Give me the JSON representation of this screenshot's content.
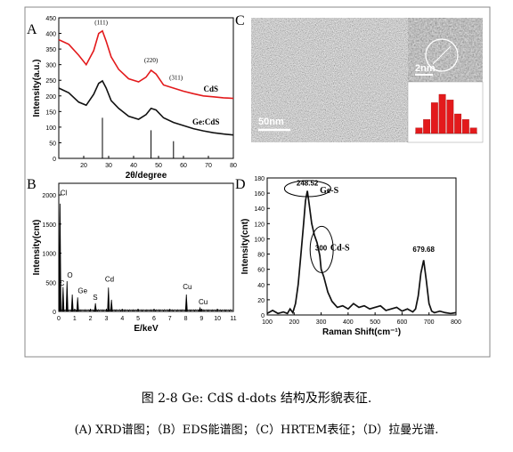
{
  "caption": {
    "title": "图  2-8 Ge: CdS d-dots  结构及形貌表征.",
    "subtitle": "(A) XRD谱图；（B）EDS能谱图；（C）HRTEM表征；（D）拉曼光谱."
  },
  "chart_data": [
    {
      "panel": "A",
      "type": "line",
      "xlabel": "2θ/degree",
      "ylabel": "Intensity(a.u.)",
      "xlim": [
        10,
        80
      ],
      "ylim": [
        0,
        450
      ],
      "x_ticks": [
        20,
        30,
        40,
        50,
        60,
        70,
        80
      ],
      "y_ticks": [
        0,
        50,
        100,
        150,
        200,
        250,
        300,
        350,
        400,
        450
      ],
      "series": [
        {
          "name": "CdS",
          "color": "#e31a1c",
          "x": [
            10,
            14,
            18,
            21,
            24,
            26,
            27.5,
            29,
            31,
            34,
            38,
            42,
            45,
            47,
            49,
            52,
            56,
            60,
            64,
            68,
            72,
            76,
            80
          ],
          "y": [
            380,
            365,
            330,
            300,
            345,
            400,
            408,
            375,
            325,
            285,
            255,
            245,
            260,
            282,
            270,
            235,
            225,
            215,
            207,
            200,
            197,
            194,
            192
          ]
        },
        {
          "name": "Ge:CdS",
          "color": "#111111",
          "x": [
            10,
            14,
            18,
            21,
            24,
            26,
            27.5,
            29,
            31,
            34,
            38,
            42,
            45,
            47,
            49,
            52,
            56,
            60,
            64,
            68,
            72,
            76,
            80
          ],
          "y": [
            225,
            210,
            180,
            170,
            205,
            240,
            248,
            225,
            185,
            160,
            135,
            125,
            140,
            160,
            155,
            130,
            115,
            105,
            95,
            88,
            82,
            78,
            75
          ]
        }
      ],
      "reference_lines": [
        {
          "x": 27.5,
          "y": 130
        },
        {
          "x": 47,
          "y": 90
        },
        {
          "x": 56,
          "y": 55
        }
      ],
      "annotations": [
        {
          "text": "(111)",
          "x": 27,
          "y": 428
        },
        {
          "text": "(220)",
          "x": 47,
          "y": 308
        },
        {
          "text": "(311)",
          "x": 57,
          "y": 252
        },
        {
          "text": "CdS",
          "x": 71,
          "y": 214
        },
        {
          "text": "Ge:CdS",
          "x": 69,
          "y": 108
        }
      ]
    },
    {
      "panel": "B",
      "type": "bar",
      "xlabel": "E/keV",
      "ylabel": "Intensity(cnt)",
      "xlim": [
        0,
        11
      ],
      "ylim": [
        0,
        2200
      ],
      "x_ticks": [
        0,
        1,
        2,
        3,
        4,
        5,
        6,
        7,
        8,
        9,
        10,
        11
      ],
      "y_ticks": [
        0,
        500,
        1000,
        1500,
        2000
      ],
      "peaks": [
        {
          "x": 0.08,
          "y": 1850
        },
        {
          "x": 0.27,
          "y": 420
        },
        {
          "x": 0.52,
          "y": 520
        },
        {
          "x": 0.85,
          "y": 290
        },
        {
          "x": 1.19,
          "y": 240
        },
        {
          "x": 2.31,
          "y": 140
        },
        {
          "x": 3.13,
          "y": 410
        },
        {
          "x": 3.32,
          "y": 200
        },
        {
          "x": 8.04,
          "y": 290
        },
        {
          "x": 8.9,
          "y": 60
        }
      ],
      "annotations": [
        {
          "text": "Cl",
          "x": 0.3,
          "y": 1990
        },
        {
          "text": "C",
          "x": 0.2,
          "y": 440
        },
        {
          "text": "O",
          "x": 0.7,
          "y": 580
        },
        {
          "text": "Ge",
          "x": 1.5,
          "y": 310
        },
        {
          "text": "S",
          "x": 2.3,
          "y": 200
        },
        {
          "text": "Cd",
          "x": 3.2,
          "y": 510
        },
        {
          "text": "Cu",
          "x": 8.1,
          "y": 380
        },
        {
          "text": "Cu",
          "x": 9.1,
          "y": 120
        }
      ]
    },
    {
      "panel": "C",
      "type": "image",
      "labels": {
        "scale_main": "50nm",
        "scale_inset": "2nm"
      },
      "histogram_values": [
        2,
        5,
        11,
        14,
        12,
        7,
        5,
        2
      ]
    },
    {
      "panel": "D",
      "type": "line",
      "xlabel": "Raman Shift(cm⁻¹)",
      "ylabel": "Intensity(cnt)",
      "xlim": [
        100,
        800
      ],
      "ylim": [
        0,
        180
      ],
      "x_ticks": [
        100,
        200,
        300,
        400,
        500,
        600,
        700,
        800
      ],
      "y_ticks": [
        0,
        20,
        40,
        60,
        80,
        100,
        120,
        140,
        160,
        180
      ],
      "series": [
        {
          "name": "Raman",
          "color": "#111111",
          "x": [
            100,
            120,
            140,
            160,
            175,
            185,
            195,
            205,
            215,
            225,
            235,
            242,
            249,
            256,
            265,
            275,
            285,
            295,
            300,
            310,
            325,
            340,
            360,
            380,
            400,
            420,
            440,
            460,
            480,
            500,
            520,
            540,
            560,
            580,
            600,
            620,
            640,
            650,
            660,
            670,
            680,
            690,
            700,
            710,
            720,
            740,
            760,
            780,
            800
          ],
          "y": [
            2,
            6,
            2,
            4,
            2,
            8,
            3,
            15,
            40,
            80,
            120,
            150,
            163,
            145,
            120,
            105,
            95,
            78,
            60,
            50,
            30,
            18,
            10,
            12,
            8,
            15,
            10,
            12,
            8,
            10,
            12,
            6,
            8,
            10,
            5,
            8,
            4,
            8,
            25,
            55,
            72,
            45,
            15,
            5,
            3,
            5,
            3,
            2,
            3
          ]
        }
      ],
      "annotations": [
        {
          "text": "248.52",
          "x": 249,
          "y": 170
        },
        {
          "text": "Ge-S",
          "x": 330,
          "y": 160
        },
        {
          "text": "300",
          "x": 300,
          "y": 85
        },
        {
          "text": "Cd-S",
          "x": 370,
          "y": 85
        },
        {
          "text": "679.68",
          "x": 680,
          "y": 83
        }
      ]
    }
  ]
}
